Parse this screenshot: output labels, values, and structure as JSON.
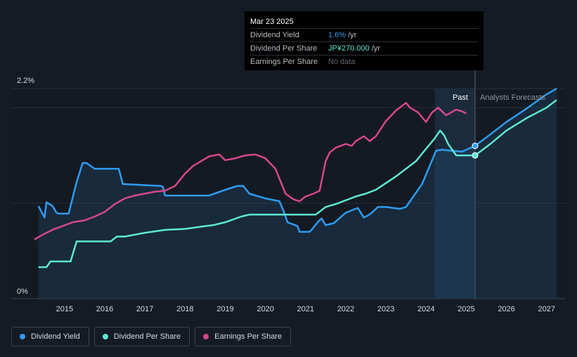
{
  "tooltip": {
    "date": "Mar 23 2025",
    "rows": [
      {
        "label": "Dividend Yield",
        "value": "1.6%",
        "unit": "/yr"
      },
      {
        "label": "Dividend Per Share",
        "value": "JP¥270.000",
        "unit": "/yr"
      },
      {
        "label": "Earnings Per Share",
        "value": "No data",
        "unit": ""
      }
    ]
  },
  "legend": [
    {
      "label": "Dividend Yield",
      "color": "#2f9cf0"
    },
    {
      "label": "Dividend Per Share",
      "color": "#5ee8d2"
    },
    {
      "label": "Earnings Per Share",
      "color": "#d6478c"
    }
  ],
  "chart_data": {
    "type": "line",
    "y_axis_labels": [
      "2.2%",
      "0%"
    ],
    "ylim": [
      0,
      2.2
    ],
    "xlim": [
      2014.25,
      2027.25
    ],
    "x_ticks": [
      "2015",
      "2016",
      "2017",
      "2018",
      "2019",
      "2020",
      "2021",
      "2022",
      "2023",
      "2024",
      "2025",
      "2026",
      "2027"
    ],
    "past_label": "Past",
    "forecast_label": "Analysts Forecasts",
    "current_date": 2025.22,
    "past_highlight_start": 2024.22,
    "series": [
      {
        "name": "Dividend Yield",
        "color": "#2f9cf0",
        "filled": true,
        "x": [
          2014.35,
          2014.45,
          2014.5,
          2014.55,
          2014.7,
          2014.8,
          2014.85,
          2015.1,
          2015.3,
          2015.45,
          2015.55,
          2015.75,
          2015.9,
          2016.35,
          2016.45,
          2017.4,
          2017.45,
          2017.5,
          2018.4,
          2018.6,
          2019.0,
          2019.3,
          2019.45,
          2019.6,
          2020.0,
          2020.35,
          2020.45,
          2020.55,
          2020.8,
          2020.85,
          2021.1,
          2021.15,
          2021.3,
          2021.4,
          2021.5,
          2021.7,
          2022.0,
          2022.3,
          2022.45,
          2022.55,
          2022.65,
          2022.8,
          2023.0,
          2023.35,
          2023.5,
          2023.9,
          2024.25,
          2024.4,
          2024.6,
          2024.9,
          2025.22,
          2025.6,
          2026.0,
          2026.5,
          2027.0,
          2027.25
        ],
        "y": [
          0.97,
          0.89,
          0.85,
          1.01,
          0.97,
          0.9,
          0.89,
          0.89,
          1.22,
          1.42,
          1.42,
          1.36,
          1.36,
          1.36,
          1.2,
          1.18,
          1.17,
          1.08,
          1.08,
          1.08,
          1.14,
          1.18,
          1.18,
          1.1,
          1.05,
          1.02,
          0.92,
          0.8,
          0.76,
          0.7,
          0.7,
          0.72,
          0.8,
          0.84,
          0.77,
          0.79,
          0.9,
          0.95,
          0.85,
          0.87,
          0.9,
          0.96,
          0.96,
          0.94,
          0.96,
          1.2,
          1.55,
          1.56,
          1.55,
          1.54,
          1.6,
          1.72,
          1.85,
          1.99,
          2.14,
          2.2
        ],
        "forecast_from": 2025.22
      },
      {
        "name": "Dividend Per Share",
        "color": "#5ee8d2",
        "filled": false,
        "x": [
          2014.35,
          2014.55,
          2014.65,
          2015.15,
          2015.3,
          2016.15,
          2016.3,
          2016.5,
          2017.0,
          2017.5,
          2018.0,
          2018.5,
          2018.7,
          2019.0,
          2019.4,
          2019.6,
          2020.0,
          2020.5,
          2021.0,
          2021.25,
          2021.35,
          2021.5,
          2021.75,
          2022.0,
          2022.25,
          2022.5,
          2022.75,
          2023.0,
          2023.25,
          2023.5,
          2023.75,
          2024.0,
          2024.2,
          2024.35,
          2024.45,
          2024.55,
          2024.75,
          2025.22,
          2025.6,
          2026.0,
          2026.5,
          2027.0,
          2027.25
        ],
        "y": [
          0.33,
          0.33,
          0.39,
          0.39,
          0.6,
          0.6,
          0.65,
          0.65,
          0.69,
          0.72,
          0.73,
          0.76,
          0.77,
          0.8,
          0.86,
          0.88,
          0.88,
          0.88,
          0.88,
          0.88,
          0.91,
          0.96,
          0.99,
          1.03,
          1.07,
          1.1,
          1.14,
          1.21,
          1.28,
          1.36,
          1.44,
          1.57,
          1.67,
          1.76,
          1.71,
          1.62,
          1.5,
          1.5,
          1.62,
          1.76,
          1.89,
          2.0,
          2.08
        ],
        "forecast_from": 2025.22
      },
      {
        "name": "Earnings Per Share",
        "color": "#d6478c",
        "filled": false,
        "x": [
          2014.25,
          2014.5,
          2014.75,
          2014.95,
          2015.2,
          2015.5,
          2015.75,
          2016.0,
          2016.25,
          2016.5,
          2016.75,
          2017.0,
          2017.25,
          2017.5,
          2017.75,
          2018.0,
          2018.2,
          2018.4,
          2018.6,
          2018.85,
          2019.0,
          2019.25,
          2019.5,
          2019.75,
          2020.0,
          2020.25,
          2020.5,
          2020.7,
          2020.85,
          2021.0,
          2021.2,
          2021.35,
          2021.5,
          2021.6,
          2021.75,
          2022.0,
          2022.15,
          2022.25,
          2022.45,
          2022.6,
          2022.75,
          2023.0,
          2023.25,
          2023.5,
          2023.6,
          2023.8,
          2024.0,
          2024.15,
          2024.3,
          2024.5,
          2024.75,
          2024.9,
          2025.0
        ],
        "y": [
          0.62,
          0.68,
          0.73,
          0.76,
          0.8,
          0.82,
          0.86,
          0.91,
          0.99,
          1.05,
          1.08,
          1.1,
          1.12,
          1.13,
          1.18,
          1.31,
          1.39,
          1.44,
          1.49,
          1.51,
          1.45,
          1.47,
          1.5,
          1.51,
          1.47,
          1.36,
          1.1,
          1.04,
          1.02,
          1.07,
          1.1,
          1.13,
          1.44,
          1.53,
          1.58,
          1.62,
          1.6,
          1.65,
          1.7,
          1.65,
          1.7,
          1.86,
          1.97,
          2.05,
          2.0,
          1.95,
          1.85,
          1.95,
          2.0,
          1.92,
          1.98,
          1.96,
          1.94
        ]
      }
    ],
    "markers": [
      {
        "series": "Dividend Yield",
        "x": 2025.22,
        "y": 1.6
      },
      {
        "series": "Dividend Per Share",
        "x": 2025.22,
        "y": 1.5
      }
    ]
  }
}
